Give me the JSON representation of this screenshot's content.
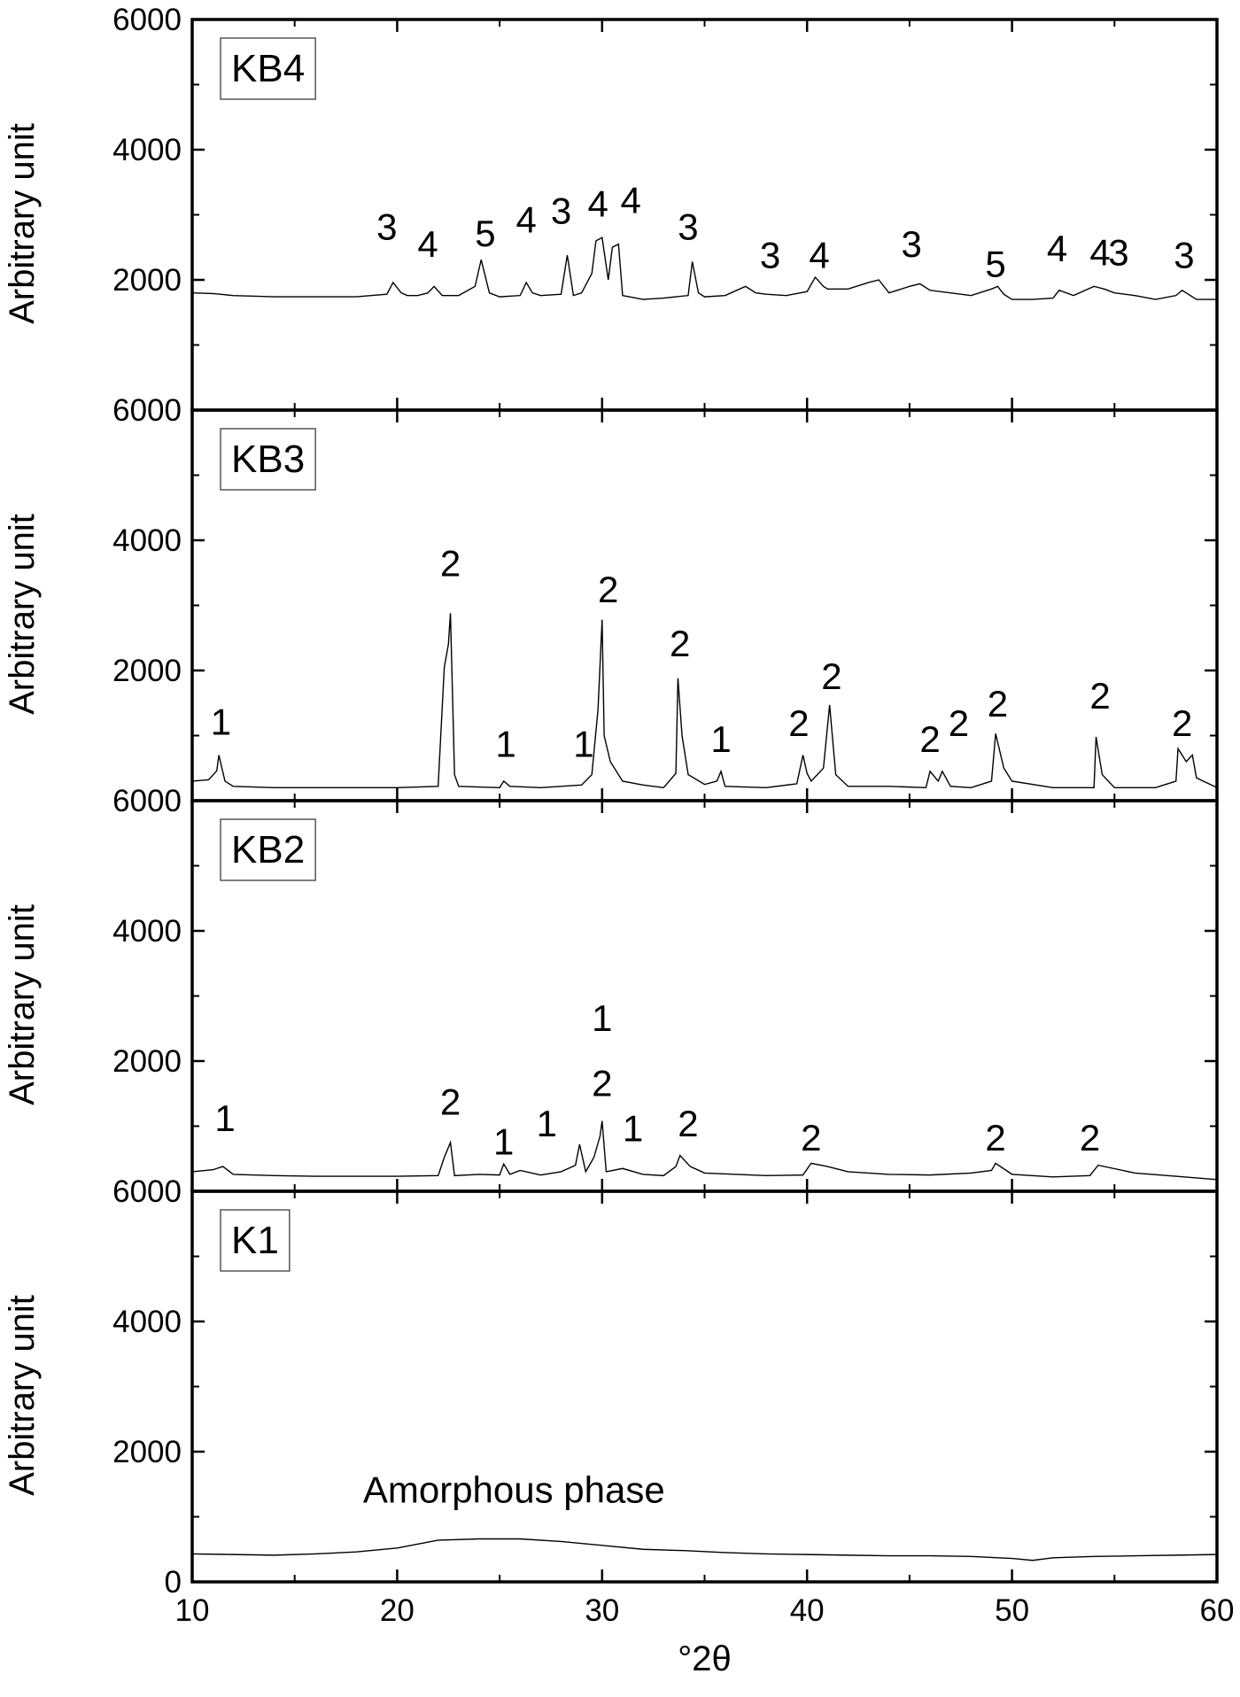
{
  "chart_data": [
    {
      "type": "line",
      "label": "KB4",
      "ylabel": "Arbitrary unit",
      "xlim": [
        10,
        60
      ],
      "ylim": [
        0,
        6000
      ],
      "yticks": [
        2000,
        4000,
        6000
      ],
      "color": "#000000",
      "x": [
        10,
        11,
        12,
        14,
        16,
        18,
        19.5,
        19.8,
        20.2,
        20.5,
        21,
        21.5,
        21.8,
        22.2,
        23,
        23.8,
        24.1,
        24.5,
        25,
        26,
        26.3,
        26.6,
        27,
        28,
        28.3,
        28.6,
        29,
        29.5,
        29.7,
        30,
        30.3,
        30.5,
        30.8,
        31,
        32,
        33,
        34.2,
        34.4,
        34.7,
        35,
        36,
        37,
        37.5,
        38,
        39,
        40,
        40.4,
        40.8,
        41,
        42,
        43,
        43.5,
        44,
        45,
        45.5,
        46,
        47,
        48,
        49,
        49.3,
        49.6,
        50,
        51,
        52,
        52.3,
        53,
        54,
        54.5,
        55,
        56,
        57,
        58,
        58.3,
        59,
        60
      ],
      "values": [
        1800,
        1790,
        1760,
        1740,
        1740,
        1740,
        1780,
        1960,
        1800,
        1760,
        1760,
        1800,
        1900,
        1760,
        1760,
        1900,
        2310,
        1800,
        1740,
        1760,
        1960,
        1800,
        1760,
        1780,
        2380,
        1760,
        1800,
        2100,
        2600,
        2650,
        2000,
        2500,
        2550,
        1760,
        1700,
        1720,
        1760,
        2280,
        1800,
        1740,
        1760,
        1900,
        1800,
        1780,
        1760,
        1820,
        2040,
        1900,
        1860,
        1860,
        1960,
        2000,
        1800,
        1900,
        1940,
        1840,
        1800,
        1760,
        1860,
        1900,
        1780,
        1700,
        1700,
        1720,
        1840,
        1760,
        1900,
        1860,
        1800,
        1760,
        1700,
        1760,
        1840,
        1700,
        1700
      ],
      "annotations": [
        {
          "text": "3",
          "x": 19.5,
          "y": 2820
        },
        {
          "text": "4",
          "x": 21.5,
          "y": 2560
        },
        {
          "text": "5",
          "x": 24.3,
          "y": 2720
        },
        {
          "text": "4",
          "x": 26.3,
          "y": 2930
        },
        {
          "text": "3",
          "x": 28,
          "y": 3070
        },
        {
          "text": "4",
          "x": 29.8,
          "y": 3180
        },
        {
          "text": "4",
          "x": 31.4,
          "y": 3230
        },
        {
          "text": "3",
          "x": 34.2,
          "y": 2820
        },
        {
          "text": "3",
          "x": 38.2,
          "y": 2390
        },
        {
          "text": "4",
          "x": 40.6,
          "y": 2390
        },
        {
          "text": "3",
          "x": 45.1,
          "y": 2560
        },
        {
          "text": "5",
          "x": 49.2,
          "y": 2250
        },
        {
          "text": "4",
          "x": 52.2,
          "y": 2490
        },
        {
          "text": "4",
          "x": 54.3,
          "y": 2430
        },
        {
          "text": "3",
          "x": 55.2,
          "y": 2430
        },
        {
          "text": "3",
          "x": 58.4,
          "y": 2390
        }
      ]
    },
    {
      "type": "line",
      "label": "KB3",
      "ylabel": "Arbitrary unit",
      "xlim": [
        10,
        60
      ],
      "ylim": [
        0,
        6000
      ],
      "yticks": [
        2000,
        4000,
        6000
      ],
      "color": "#000000",
      "x": [
        10,
        10.8,
        11.2,
        11.3,
        11.6,
        12,
        14,
        16,
        18,
        20,
        22,
        22.3,
        22.5,
        22.6,
        22.8,
        23,
        25,
        25.2,
        25.5,
        27,
        29,
        29.5,
        29.8,
        30,
        30.1,
        30.4,
        31,
        32,
        33,
        33.6,
        33.7,
        33.9,
        34.2,
        35,
        35.6,
        35.8,
        36,
        38,
        39.5,
        39.8,
        40,
        40.2,
        40.8,
        41.1,
        41.4,
        42,
        44,
        45.8,
        46,
        46.4,
        46.6,
        47,
        48,
        49,
        49.2,
        49.6,
        50,
        52,
        54,
        54.1,
        54.4,
        55,
        57,
        58,
        58.1,
        58.5,
        58.8,
        59,
        60
      ],
      "values": [
        300,
        320,
        460,
        700,
        300,
        220,
        200,
        200,
        200,
        200,
        220,
        2050,
        2400,
        2880,
        400,
        220,
        200,
        300,
        220,
        200,
        240,
        400,
        1400,
        2780,
        1000,
        600,
        300,
        240,
        200,
        420,
        1880,
        1000,
        400,
        250,
        300,
        450,
        220,
        200,
        260,
        700,
        420,
        300,
        500,
        1470,
        400,
        220,
        220,
        200,
        450,
        300,
        450,
        220,
        200,
        300,
        1030,
        500,
        300,
        200,
        200,
        980,
        400,
        200,
        200,
        300,
        800,
        600,
        700,
        350,
        200
      ],
      "annotations": [
        {
          "text": "1",
          "x": 11.4,
          "y": 1220
        },
        {
          "text": "2",
          "x": 22.6,
          "y": 3650
        },
        {
          "text": "1",
          "x": 25.3,
          "y": 880
        },
        {
          "text": "1",
          "x": 29.1,
          "y": 880
        },
        {
          "text": "2",
          "x": 30.3,
          "y": 3250
        },
        {
          "text": "2",
          "x": 33.8,
          "y": 2420
        },
        {
          "text": "1",
          "x": 35.8,
          "y": 950
        },
        {
          "text": "2",
          "x": 39.6,
          "y": 1200
        },
        {
          "text": "2",
          "x": 41.2,
          "y": 1920
        },
        {
          "text": "2",
          "x": 46,
          "y": 950
        },
        {
          "text": "2",
          "x": 47.4,
          "y": 1200
        },
        {
          "text": "2",
          "x": 49.3,
          "y": 1500
        },
        {
          "text": "2",
          "x": 54.3,
          "y": 1620
        },
        {
          "text": "2",
          "x": 58.3,
          "y": 1200
        }
      ]
    },
    {
      "type": "line",
      "label": "KB2",
      "ylabel": "Arbitrary unit",
      "xlim": [
        10,
        60
      ],
      "ylim": [
        0,
        6000
      ],
      "yticks": [
        2000,
        4000,
        6000
      ],
      "color": "#000000",
      "x": [
        10,
        11,
        11.5,
        12,
        14,
        16,
        18,
        20,
        22,
        22.3,
        22.6,
        22.8,
        24,
        25,
        25.2,
        25.5,
        26,
        27,
        28,
        28.7,
        28.9,
        29.2,
        29.6,
        29.9,
        30,
        30.2,
        31,
        32,
        33,
        33.6,
        33.8,
        34.3,
        35,
        38,
        39.8,
        40.2,
        41,
        42,
        44,
        46,
        48,
        49,
        49.2,
        50,
        52,
        53.8,
        54.2,
        56,
        58,
        60
      ],
      "values": [
        300,
        330,
        380,
        260,
        240,
        230,
        230,
        230,
        240,
        520,
        750,
        240,
        260,
        250,
        420,
        260,
        320,
        250,
        300,
        400,
        720,
        300,
        520,
        850,
        1080,
        300,
        350,
        260,
        240,
        380,
        550,
        380,
        280,
        240,
        250,
        430,
        380,
        300,
        260,
        250,
        280,
        320,
        430,
        260,
        220,
        240,
        400,
        280,
        230,
        180
      ],
      "annotations": [
        {
          "text": "1",
          "x": 11.6,
          "y": 1130
        },
        {
          "text": "2",
          "x": 22.6,
          "y": 1380
        },
        {
          "text": "1",
          "x": 25.2,
          "y": 770
        },
        {
          "text": "1",
          "x": 27.3,
          "y": 1050
        },
        {
          "text": "1",
          "x": 30,
          "y": 2670
        },
        {
          "text": "2",
          "x": 30,
          "y": 1670
        },
        {
          "text": "1",
          "x": 31.5,
          "y": 970
        },
        {
          "text": "2",
          "x": 34.2,
          "y": 1050
        },
        {
          "text": "2",
          "x": 40.2,
          "y": 830
        },
        {
          "text": "2",
          "x": 49.2,
          "y": 830
        },
        {
          "text": "2",
          "x": 53.8,
          "y": 830
        }
      ]
    },
    {
      "type": "line",
      "label": "K1",
      "ylabel": "Arbitrary unit",
      "xlabel": "°2θ",
      "xlim": [
        10,
        60
      ],
      "ylim": [
        0,
        6000
      ],
      "yticks": [
        0,
        2000,
        4000,
        6000
      ],
      "xticks": [
        10,
        20,
        30,
        40,
        50,
        60
      ],
      "color": "#000000",
      "x": [
        10,
        12,
        14,
        16,
        18,
        20,
        22,
        24,
        26,
        28,
        30,
        32,
        34,
        36,
        38,
        40,
        42,
        44,
        46,
        48,
        50,
        51,
        52,
        53,
        54,
        56,
        58,
        60
      ],
      "values": [
        430,
        420,
        410,
        430,
        460,
        520,
        640,
        660,
        660,
        620,
        560,
        500,
        480,
        450,
        430,
        420,
        410,
        400,
        400,
        390,
        360,
        330,
        370,
        380,
        390,
        400,
        410,
        420
      ],
      "annotations": [
        {
          "text": "Amorphous phase",
          "x": 25.7,
          "y": 1420
        }
      ]
    }
  ]
}
